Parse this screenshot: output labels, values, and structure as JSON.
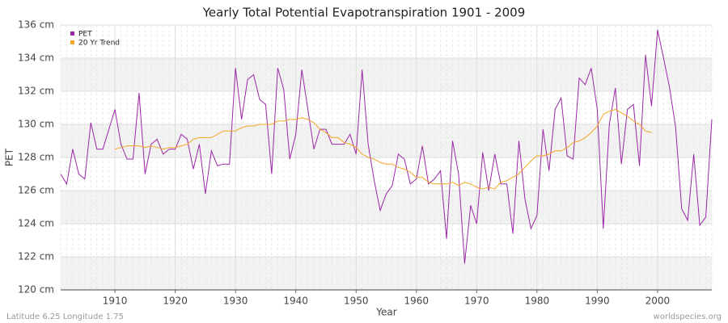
{
  "chart_data": {
    "type": "line",
    "title": "Yearly Total Potential Evapotranspiration 1901 - 2009",
    "x_label": "Year",
    "y_label": "PET",
    "footer_left": "Latitude 6.25 Longitude 1.75",
    "footer_right": "worldspecies.org",
    "legend": "top-left",
    "grid": true,
    "xlim": [
      1901,
      2009
    ],
    "xticks": [
      1910,
      1920,
      1930,
      1940,
      1950,
      1960,
      1970,
      1980,
      1990,
      2000
    ],
    "ylim": [
      120,
      136
    ],
    "yticks": [
      {
        "value": 120,
        "label": "120 cm"
      },
      {
        "value": 122,
        "label": "122 cm"
      },
      {
        "value": 124,
        "label": "124 cm"
      },
      {
        "value": 126,
        "label": "126 cm"
      },
      {
        "value": 128,
        "label": "128 cm"
      },
      {
        "value": 130,
        "label": "130 cm"
      },
      {
        "value": 132,
        "label": "132 cm"
      },
      {
        "value": 134,
        "label": "134 cm"
      },
      {
        "value": 136,
        "label": "136 cm"
      }
    ],
    "x": [
      1901,
      1902,
      1903,
      1904,
      1905,
      1906,
      1907,
      1908,
      1909,
      1910,
      1911,
      1912,
      1913,
      1914,
      1915,
      1916,
      1917,
      1918,
      1919,
      1920,
      1921,
      1922,
      1923,
      1924,
      1925,
      1926,
      1927,
      1928,
      1929,
      1930,
      1931,
      1932,
      1933,
      1934,
      1935,
      1936,
      1937,
      1938,
      1939,
      1940,
      1941,
      1942,
      1943,
      1944,
      1945,
      1946,
      1947,
      1948,
      1949,
      1950,
      1951,
      1952,
      1953,
      1954,
      1955,
      1956,
      1957,
      1958,
      1959,
      1960,
      1961,
      1962,
      1963,
      1964,
      1965,
      1966,
      1967,
      1968,
      1969,
      1970,
      1971,
      1972,
      1973,
      1974,
      1975,
      1976,
      1977,
      1978,
      1979,
      1980,
      1981,
      1982,
      1983,
      1984,
      1985,
      1986,
      1987,
      1988,
      1989,
      1990,
      1991,
      1992,
      1993,
      1994,
      1995,
      1996,
      1997,
      1998,
      1999,
      2000,
      2001,
      2002,
      2003,
      2004,
      2005,
      2006,
      2007,
      2008,
      2009
    ],
    "series": [
      {
        "name": "PET",
        "color": "#9b27a8",
        "values": [
          127.0,
          126.4,
          128.5,
          127.0,
          126.7,
          130.1,
          128.5,
          128.5,
          129.7,
          130.9,
          128.8,
          127.9,
          127.9,
          131.9,
          127.0,
          128.8,
          129.1,
          128.2,
          128.5,
          128.5,
          129.4,
          129.1,
          127.3,
          128.8,
          125.8,
          128.4,
          127.5,
          127.6,
          127.6,
          133.4,
          130.3,
          132.7,
          133.0,
          131.5,
          131.2,
          127.0,
          133.4,
          132.1,
          127.9,
          129.4,
          133.3,
          130.9,
          128.5,
          129.7,
          129.7,
          128.8,
          128.8,
          128.8,
          129.4,
          128.2,
          133.3,
          128.8,
          126.6,
          124.8,
          125.8,
          126.3,
          128.2,
          127.9,
          126.4,
          126.7,
          128.7,
          126.4,
          126.7,
          127.2,
          123.1,
          129.0,
          127.0,
          121.6,
          125.1,
          124.0,
          128.3,
          126.0,
          128.2,
          126.4,
          126.4,
          123.4,
          129.0,
          125.5,
          123.7,
          124.5,
          129.7,
          127.2,
          130.9,
          131.6,
          128.1,
          127.9,
          132.8,
          132.4,
          133.4,
          130.9,
          123.7,
          130.0,
          132.2,
          127.6,
          130.9,
          131.2,
          127.5,
          134.2,
          131.1,
          135.7,
          134.0,
          132.2,
          129.8,
          124.9,
          124.2,
          128.2,
          123.9,
          124.4,
          130.3
        ]
      },
      {
        "name": "20 Yr Trend",
        "color": "#f5a623",
        "values": [
          null,
          null,
          null,
          null,
          null,
          null,
          null,
          null,
          null,
          128.5,
          128.6,
          128.7,
          128.7,
          128.7,
          128.6,
          128.7,
          128.6,
          128.5,
          128.6,
          128.6,
          128.7,
          128.8,
          129.1,
          129.2,
          129.2,
          129.2,
          129.4,
          129.6,
          129.6,
          129.6,
          129.8,
          129.9,
          129.9,
          130.0,
          130.0,
          130.0,
          130.2,
          130.2,
          130.3,
          130.3,
          130.4,
          130.3,
          130.1,
          129.7,
          129.5,
          129.2,
          129.2,
          128.9,
          128.8,
          128.6,
          128.2,
          128.0,
          127.9,
          127.7,
          127.6,
          127.6,
          127.4,
          127.3,
          127.1,
          126.8,
          126.8,
          126.5,
          126.4,
          126.4,
          126.4,
          126.5,
          126.3,
          126.5,
          126.4,
          126.2,
          126.1,
          126.2,
          126.1,
          126.5,
          126.6,
          126.8,
          127.0,
          127.4,
          127.8,
          128.1,
          128.1,
          128.2,
          128.4,
          128.4,
          128.6,
          128.9,
          129.0,
          129.2,
          129.5,
          129.9,
          130.6,
          130.8,
          130.9,
          130.7,
          130.5,
          130.2,
          130.0,
          129.6,
          129.5,
          null,
          null,
          null,
          null,
          null,
          null,
          null,
          null,
          null,
          null
        ]
      }
    ]
  }
}
